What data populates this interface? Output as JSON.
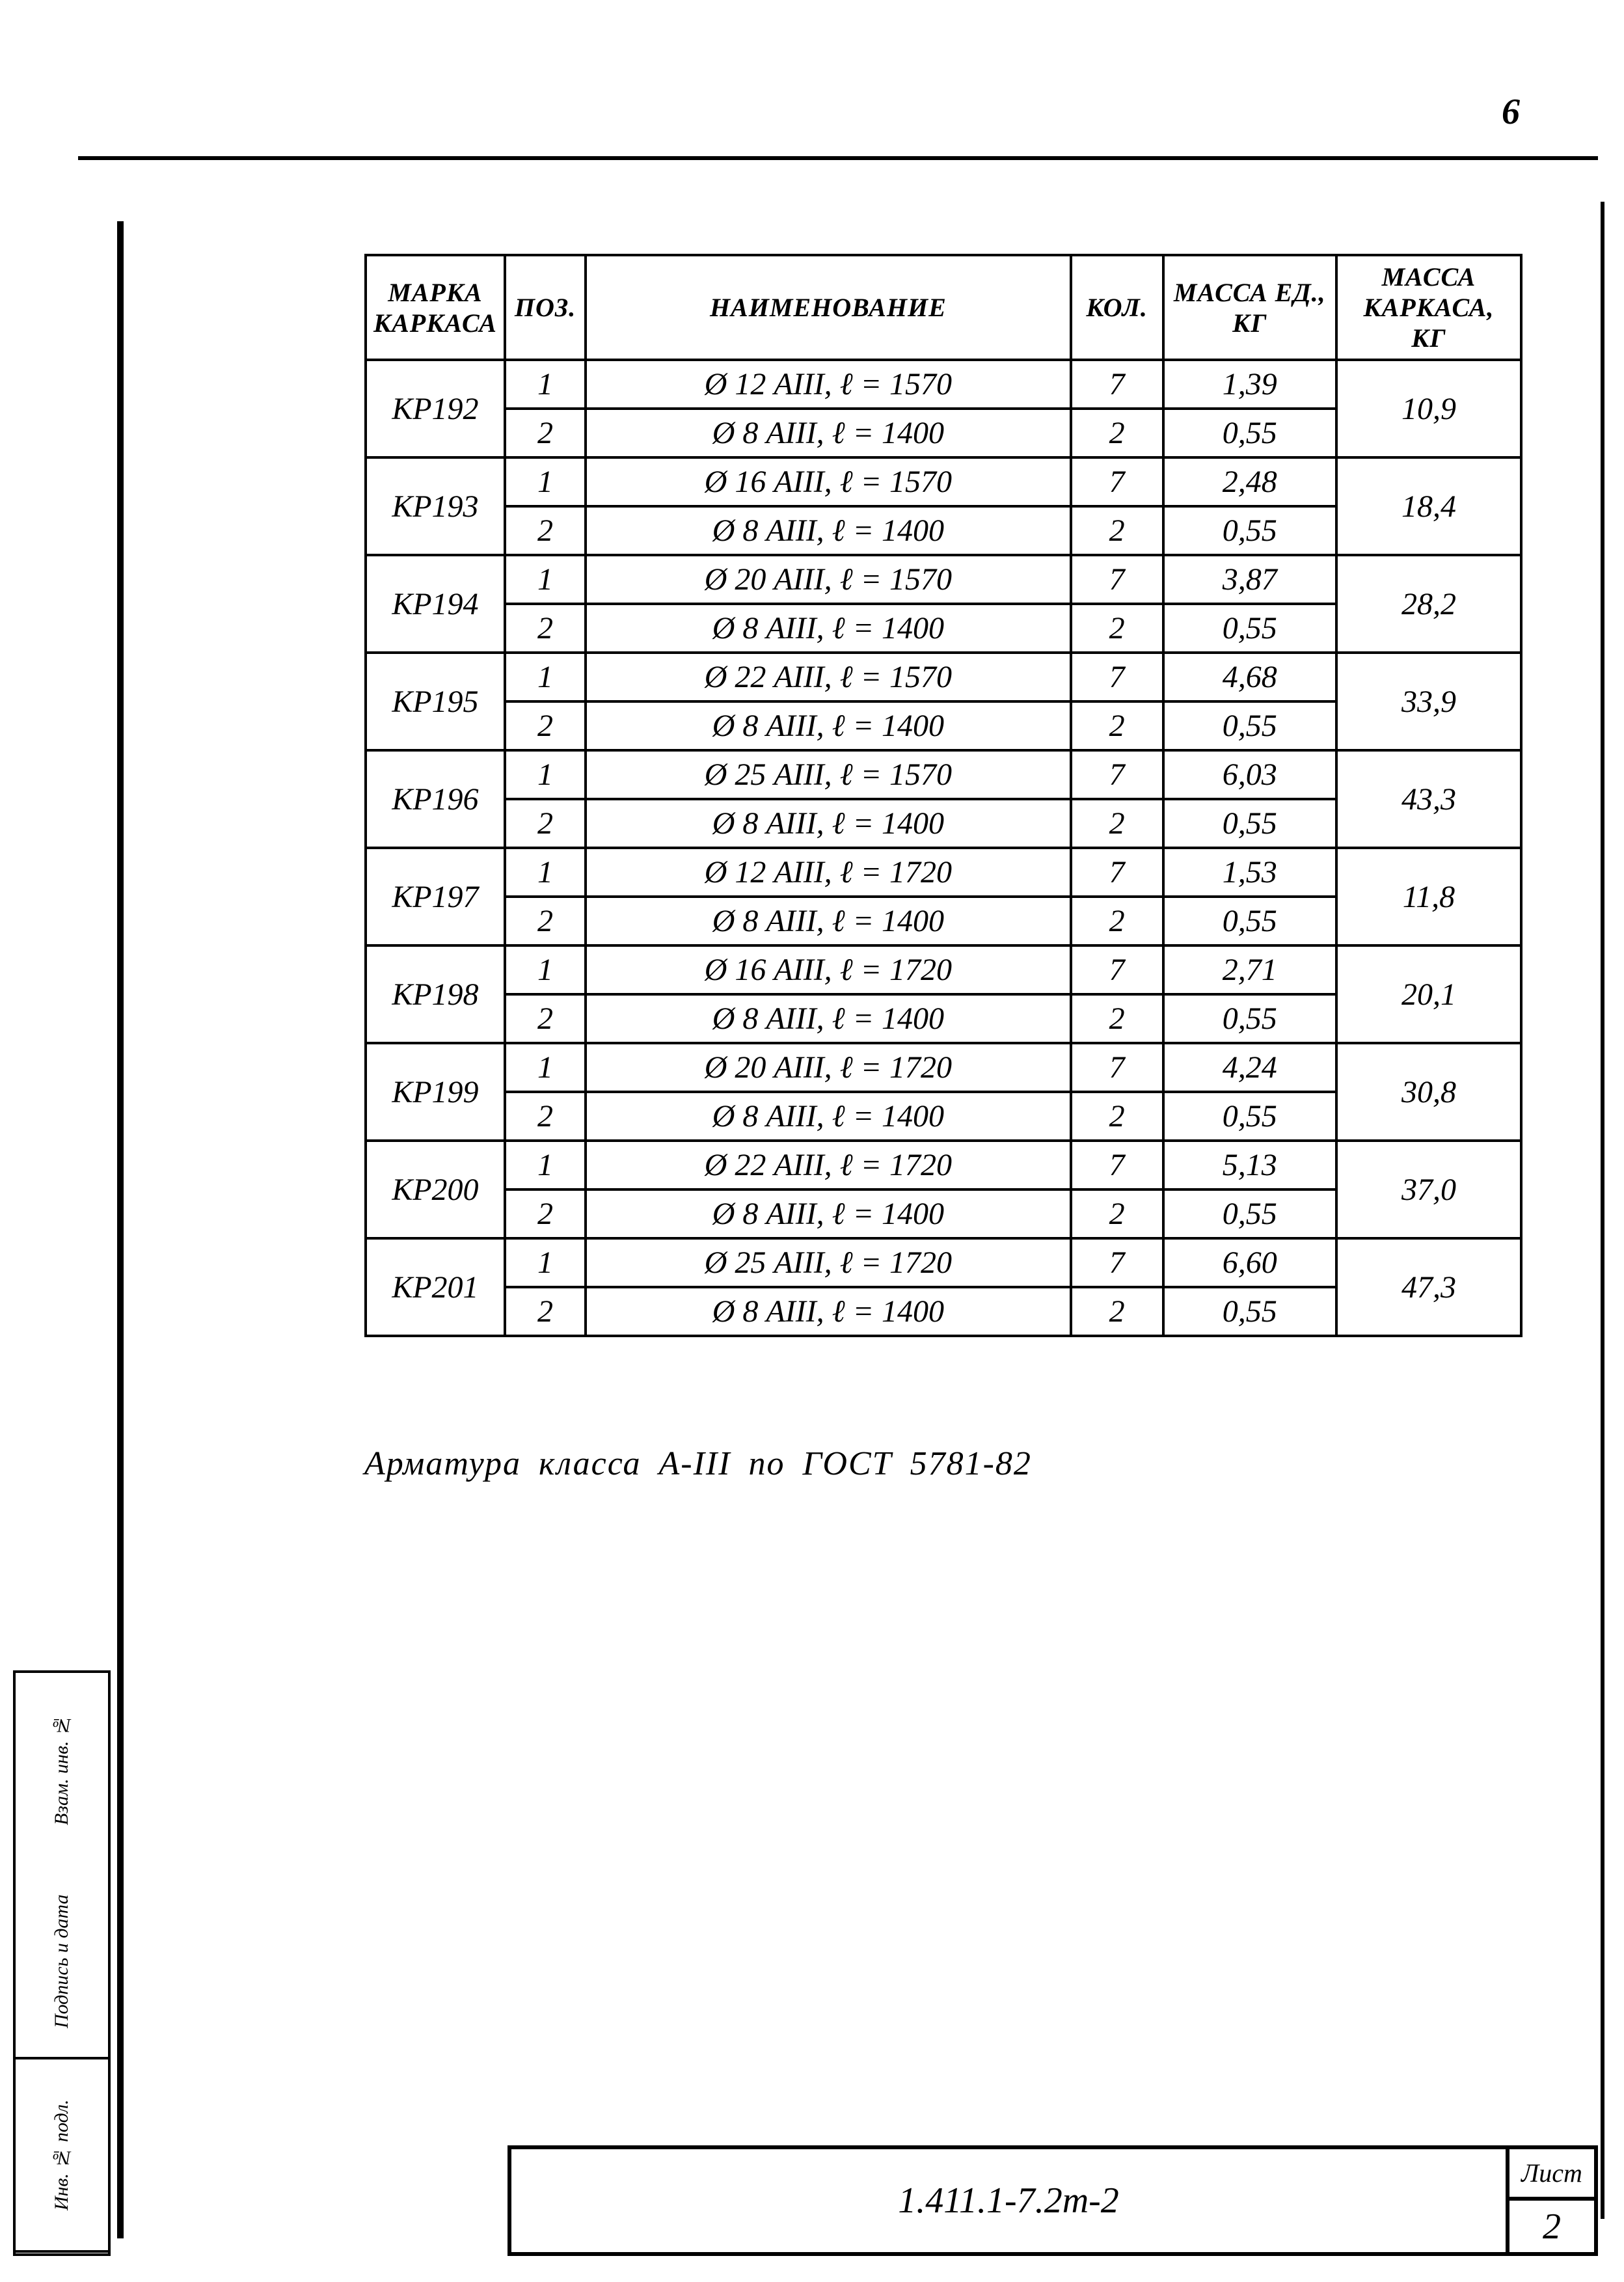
{
  "page_number_top": "6",
  "table": {
    "headers": {
      "marka": "Марка каркаса",
      "poz": "Поз.",
      "naim": "Наименование",
      "kol": "Кол.",
      "massa_ed": "Масса ед., кг",
      "massa_kark": "Масса каркаса, кг"
    },
    "groups": [
      {
        "marka": "КР192",
        "massa_kark": "10,9",
        "rows": [
          {
            "poz": "1",
            "naim": "Ø 12 АIII, ℓ = 1570",
            "kol": "7",
            "massa_ed": "1,39"
          },
          {
            "poz": "2",
            "naim": "Ø 8 АIII, ℓ = 1400",
            "kol": "2",
            "massa_ed": "0,55"
          }
        ]
      },
      {
        "marka": "КР193",
        "massa_kark": "18,4",
        "rows": [
          {
            "poz": "1",
            "naim": "Ø 16 АIII, ℓ = 1570",
            "kol": "7",
            "massa_ed": "2,48"
          },
          {
            "poz": "2",
            "naim": "Ø 8 АIII, ℓ = 1400",
            "kol": "2",
            "massa_ed": "0,55"
          }
        ]
      },
      {
        "marka": "КР194",
        "massa_kark": "28,2",
        "rows": [
          {
            "poz": "1",
            "naim": "Ø 20 АIII, ℓ = 1570",
            "kol": "7",
            "massa_ed": "3,87"
          },
          {
            "poz": "2",
            "naim": "Ø 8 АIII, ℓ = 1400",
            "kol": "2",
            "massa_ed": "0,55"
          }
        ]
      },
      {
        "marka": "КР195",
        "massa_kark": "33,9",
        "rows": [
          {
            "poz": "1",
            "naim": "Ø 22 АIII, ℓ = 1570",
            "kol": "7",
            "massa_ed": "4,68"
          },
          {
            "poz": "2",
            "naim": "Ø 8 АIII, ℓ = 1400",
            "kol": "2",
            "massa_ed": "0,55"
          }
        ]
      },
      {
        "marka": "КР196",
        "massa_kark": "43,3",
        "rows": [
          {
            "poz": "1",
            "naim": "Ø 25 АIII, ℓ = 1570",
            "kol": "7",
            "massa_ed": "6,03"
          },
          {
            "poz": "2",
            "naim": "Ø 8 АIII, ℓ = 1400",
            "kol": "2",
            "massa_ed": "0,55"
          }
        ]
      },
      {
        "marka": "КР197",
        "massa_kark": "11,8",
        "rows": [
          {
            "poz": "1",
            "naim": "Ø 12 АIII, ℓ = 1720",
            "kol": "7",
            "massa_ed": "1,53"
          },
          {
            "poz": "2",
            "naim": "Ø 8 АIII, ℓ = 1400",
            "kol": "2",
            "massa_ed": "0,55"
          }
        ]
      },
      {
        "marka": "КР198",
        "massa_kark": "20,1",
        "rows": [
          {
            "poz": "1",
            "naim": "Ø 16 АIII, ℓ = 1720",
            "kol": "7",
            "massa_ed": "2,71"
          },
          {
            "poz": "2",
            "naim": "Ø 8 АIII, ℓ = 1400",
            "kol": "2",
            "massa_ed": "0,55"
          }
        ]
      },
      {
        "marka": "КР199",
        "massa_kark": "30,8",
        "rows": [
          {
            "poz": "1",
            "naim": "Ø 20 АIII, ℓ = 1720",
            "kol": "7",
            "massa_ed": "4,24"
          },
          {
            "poz": "2",
            "naim": "Ø 8 АIII, ℓ = 1400",
            "kol": "2",
            "massa_ed": "0,55"
          }
        ]
      },
      {
        "marka": "КР200",
        "massa_kark": "37,0",
        "rows": [
          {
            "poz": "1",
            "naim": "Ø 22 АIII, ℓ = 1720",
            "kol": "7",
            "massa_ed": "5,13"
          },
          {
            "poz": "2",
            "naim": "Ø 8 АIII, ℓ = 1400",
            "kol": "2",
            "massa_ed": "0,55"
          }
        ]
      },
      {
        "marka": "КР201",
        "massa_kark": "47,3",
        "rows": [
          {
            "poz": "1",
            "naim": "Ø 25 АIII, ℓ = 1720",
            "kol": "7",
            "massa_ed": "6,60"
          },
          {
            "poz": "2",
            "naim": "Ø 8 АIII, ℓ = 1400",
            "kol": "2",
            "massa_ed": "0,55"
          }
        ]
      }
    ]
  },
  "note_text": "Арматура  класса  А-III  по ГОСТ 5781-82",
  "side_labels": {
    "inv": "Инв. № подл.",
    "podp": "Подпись и дата",
    "vzam": "Взам. инв. №"
  },
  "title_block": {
    "doc_code": "1.411.1-7.2m-2",
    "sheet_label": "Лист",
    "sheet_number": "2"
  }
}
